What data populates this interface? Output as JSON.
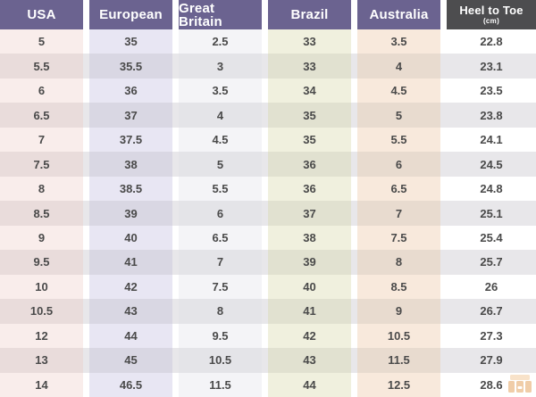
{
  "chart_data": {
    "type": "table",
    "columns": [
      {
        "label": "USA"
      },
      {
        "label": "European"
      },
      {
        "label": "Great Britain"
      },
      {
        "label": "Brazil"
      },
      {
        "label": "Australia"
      },
      {
        "label": "Heel to Toe",
        "sublabel": "(cm)"
      }
    ],
    "rows": [
      [
        "5",
        "35",
        "2.5",
        "33",
        "3.5",
        "22.8"
      ],
      [
        "5.5",
        "35.5",
        "3",
        "33",
        "4",
        "23.1"
      ],
      [
        "6",
        "36",
        "3.5",
        "34",
        "4.5",
        "23.5"
      ],
      [
        "6.5",
        "37",
        "4",
        "35",
        "5",
        "23.8"
      ],
      [
        "7",
        "37.5",
        "4.5",
        "35",
        "5.5",
        "24.1"
      ],
      [
        "7.5",
        "38",
        "5",
        "36",
        "6",
        "24.5"
      ],
      [
        "8",
        "38.5",
        "5.5",
        "36",
        "6.5",
        "24.8"
      ],
      [
        "8.5",
        "39",
        "6",
        "37",
        "7",
        "25.1"
      ],
      [
        "9",
        "40",
        "6.5",
        "38",
        "7.5",
        "25.4"
      ],
      [
        "9.5",
        "41",
        "7",
        "39",
        "8",
        "25.7"
      ],
      [
        "10",
        "42",
        "7.5",
        "40",
        "8.5",
        "26"
      ],
      [
        "10.5",
        "43",
        "8",
        "41",
        "9",
        "26.7"
      ],
      [
        "12",
        "44",
        "9.5",
        "42",
        "10.5",
        "27.3"
      ],
      [
        "13",
        "45",
        "10.5",
        "43",
        "11.5",
        "27.9"
      ],
      [
        "14",
        "46.5",
        "11.5",
        "44",
        "12.5",
        "28.6"
      ]
    ]
  },
  "colors": {
    "header_bg": "#6b6390",
    "header_last_bg": "#4d4d4f",
    "header_text": "#ffffff",
    "body_text": "#4a4a4a",
    "even_row_band": "#e8e7ea",
    "column_tints_light": [
      "#f9edeb",
      "#e8e6f3",
      "#f4f4f7",
      "#f0f0de",
      "#f8e9dc",
      "#ffffff"
    ],
    "column_tints_shaded": [
      "#e9dcdb",
      "#d9d7e3",
      "#e4e4e8",
      "#e1e1d0",
      "#e8dbcf",
      "#e8e7ea"
    ],
    "watermark_orange": "#e0913f"
  }
}
